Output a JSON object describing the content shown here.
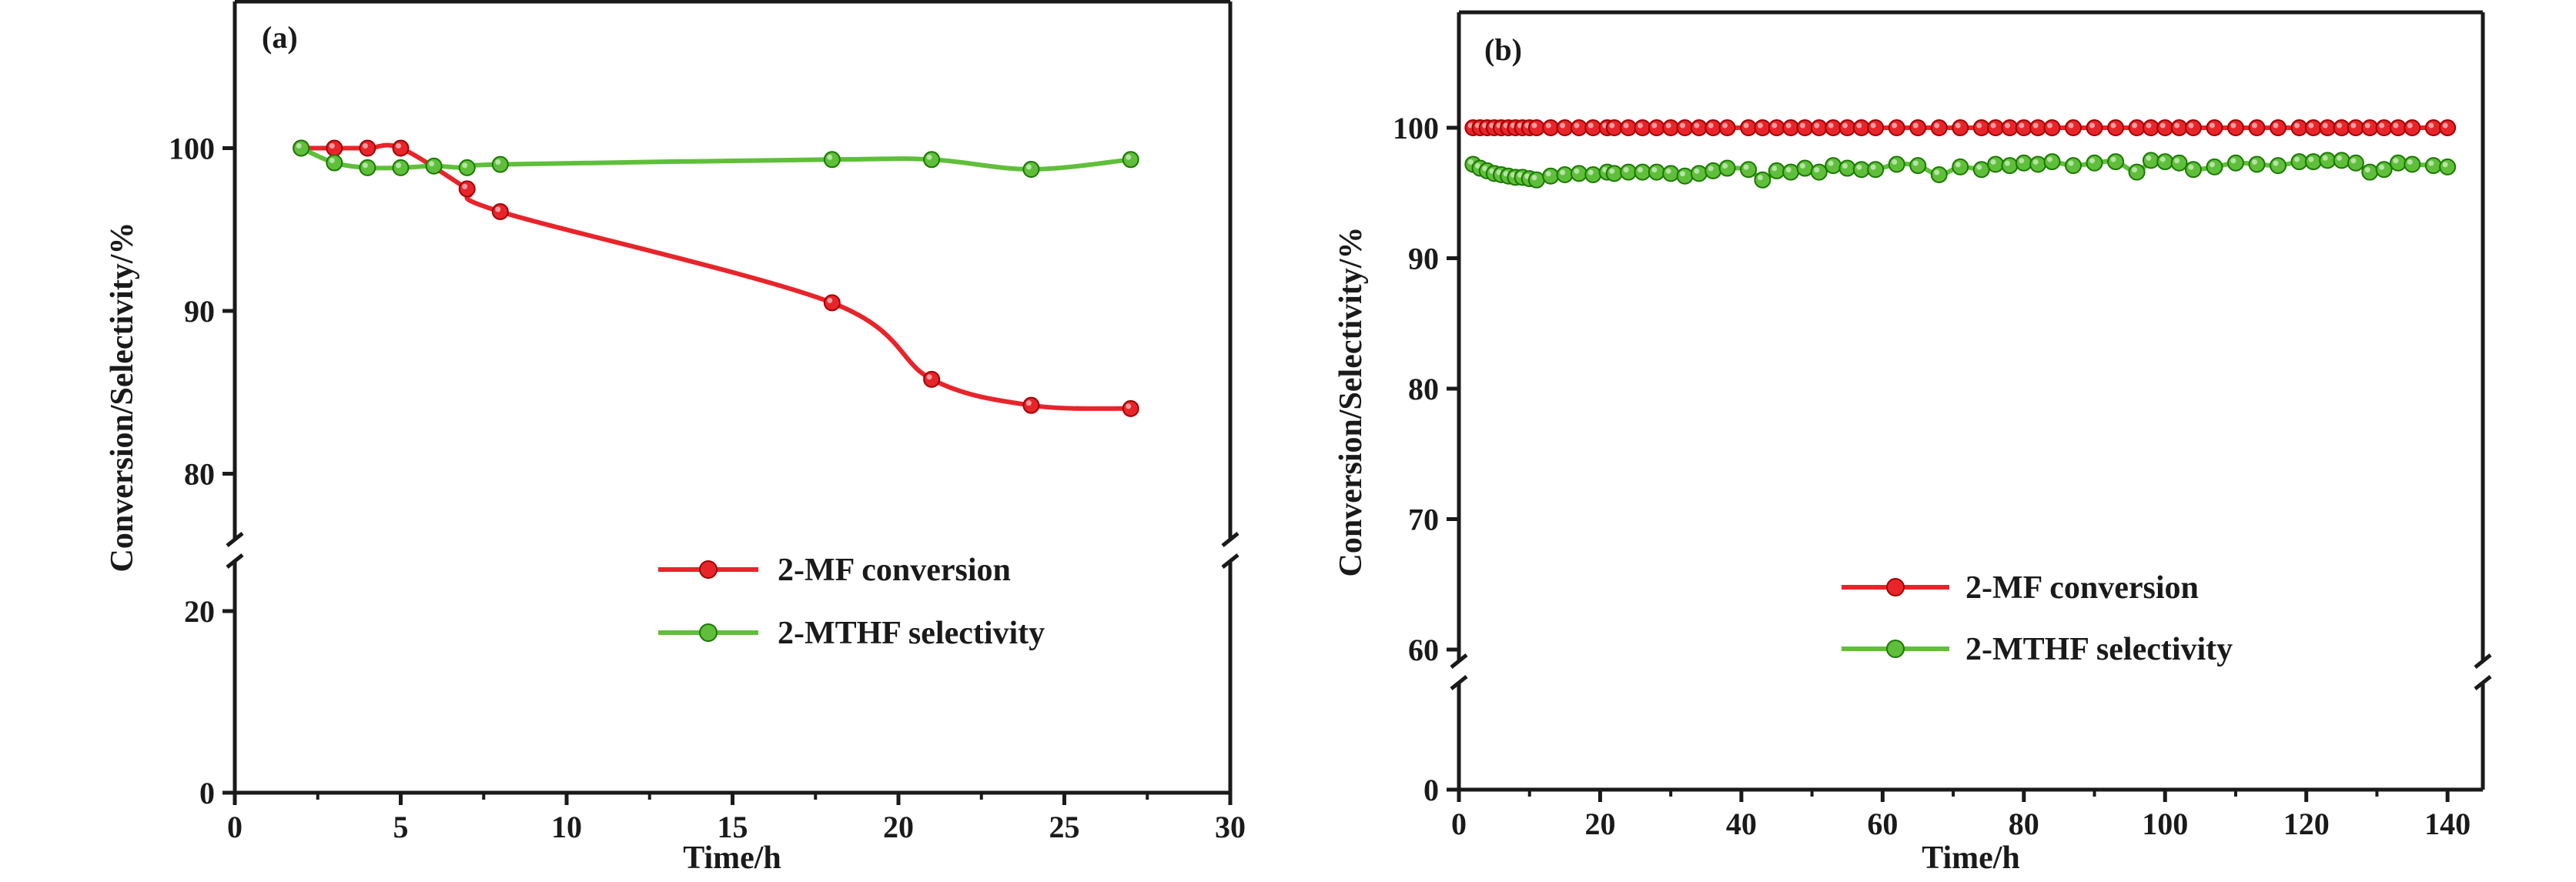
{
  "chart_data": [
    {
      "type": "line",
      "panel_label": "(a)",
      "xlabel": "Time/h",
      "ylabel": "Conversion/Selectivity/%",
      "xlim": [
        0,
        30
      ],
      "x_ticks": [
        "0",
        "5",
        "10",
        "15",
        "20",
        "25",
        "30"
      ],
      "y_ticks": [
        "0",
        "20",
        "80",
        "90",
        "100"
      ],
      "y_axis_break": [
        25,
        75
      ],
      "legend_position": "lower-right",
      "series": [
        {
          "name": "2-MF conversion",
          "color": "#e8242b",
          "x": [
            2,
            3,
            4,
            5,
            7,
            8,
            18,
            21,
            24,
            27
          ],
          "y": [
            100,
            100,
            100,
            100,
            97.5,
            96.1,
            90.5,
            85.8,
            84.2,
            84.0
          ]
        },
        {
          "name": "2-MTHF selectivity",
          "color": "#5fbf3a",
          "x": [
            2,
            3,
            4,
            5,
            6,
            7,
            8,
            18,
            21,
            24,
            27
          ],
          "y": [
            100,
            99.1,
            98.8,
            98.8,
            98.9,
            98.8,
            99.0,
            99.3,
            99.3,
            98.7,
            99.3
          ]
        }
      ]
    },
    {
      "type": "line",
      "panel_label": "(b)",
      "xlabel": "Time/h",
      "ylabel": "Conversion/Selectivity/%",
      "xlim": [
        0,
        145
      ],
      "x_ticks": [
        "0",
        "20",
        "40",
        "60",
        "80",
        "100",
        "120",
        "140"
      ],
      "y_ticks": [
        "0",
        "60",
        "70",
        "80",
        "90",
        "100"
      ],
      "y_axis_break": [
        10,
        55
      ],
      "legend_position": "lower-center",
      "series": [
        {
          "name": "2-MF conversion",
          "color": "#e8242b",
          "x": [
            2,
            3,
            4,
            5,
            6,
            7,
            8,
            9,
            10,
            11,
            13,
            15,
            17,
            19,
            21,
            22,
            24,
            26,
            28,
            30,
            32,
            34,
            36,
            38,
            41,
            43,
            45,
            47,
            49,
            51,
            53,
            55,
            57,
            59,
            62,
            65,
            68,
            71,
            74,
            76,
            78,
            80,
            82,
            84,
            87,
            90,
            93,
            96,
            98,
            100,
            102,
            104,
            107,
            110,
            113,
            116,
            119,
            121,
            123,
            125,
            127,
            129,
            131,
            133,
            135,
            138,
            140
          ],
          "y": [
            100,
            100,
            100,
            100,
            100,
            100,
            100,
            100,
            100,
            100,
            100,
            100,
            100,
            100,
            100,
            100,
            100,
            100,
            100,
            100,
            100,
            100,
            100,
            100,
            100,
            100,
            100,
            100,
            100,
            100,
            100,
            100,
            100,
            100,
            100,
            100,
            100,
            100,
            100,
            100,
            100,
            100,
            100,
            100,
            100,
            100,
            100,
            100,
            100,
            100,
            100,
            100,
            100,
            100,
            100,
            100,
            100,
            100,
            100,
            100,
            100,
            100,
            100,
            100,
            100,
            100,
            100
          ]
        },
        {
          "name": "2-MTHF selectivity",
          "color": "#5fbf3a",
          "x": [
            2,
            3,
            4,
            5,
            6,
            7,
            8,
            9,
            10,
            11,
            13,
            15,
            17,
            19,
            21,
            22,
            24,
            26,
            28,
            30,
            32,
            34,
            36,
            38,
            41,
            43,
            45,
            47,
            49,
            51,
            53,
            55,
            57,
            59,
            62,
            65,
            68,
            71,
            74,
            76,
            78,
            80,
            82,
            84,
            87,
            90,
            93,
            96,
            98,
            100,
            102,
            104,
            107,
            110,
            113,
            116,
            119,
            121,
            123,
            125,
            127,
            129,
            131,
            133,
            135,
            138,
            140
          ],
          "y": [
            97.2,
            96.9,
            96.7,
            96.5,
            96.4,
            96.3,
            96.2,
            96.2,
            96.1,
            96.0,
            96.3,
            96.4,
            96.5,
            96.4,
            96.6,
            96.5,
            96.6,
            96.6,
            96.6,
            96.5,
            96.3,
            96.5,
            96.7,
            96.9,
            96.8,
            96.0,
            96.7,
            96.6,
            96.9,
            96.6,
            97.1,
            96.9,
            96.8,
            96.8,
            97.2,
            97.1,
            96.4,
            97.0,
            96.8,
            97.2,
            97.1,
            97.3,
            97.2,
            97.4,
            97.1,
            97.3,
            97.4,
            96.6,
            97.5,
            97.4,
            97.3,
            96.8,
            97.0,
            97.3,
            97.2,
            97.1,
            97.4,
            97.4,
            97.5,
            97.5,
            97.3,
            96.6,
            96.8,
            97.3,
            97.2,
            97.1,
            97.0
          ]
        }
      ]
    }
  ]
}
